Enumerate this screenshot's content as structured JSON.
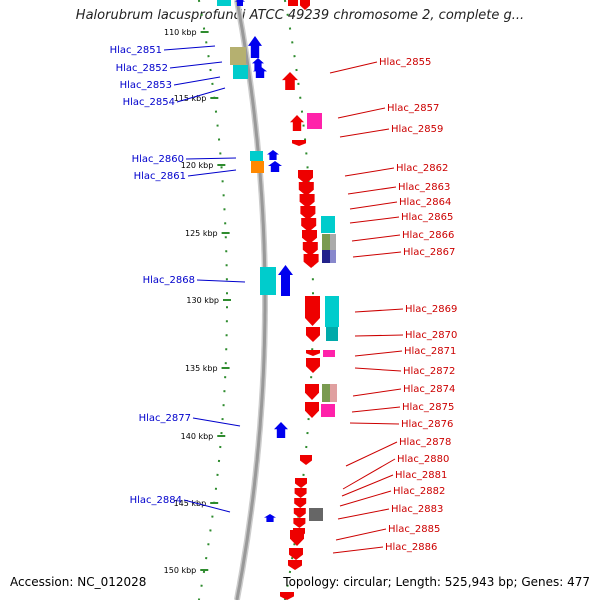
{
  "header": {
    "title": "Halorubrum lacusprofundi ATCC 49239 chromosome 2, complete g..."
  },
  "footer": {
    "accession": "Accession: NC_012028",
    "topology": "Topology: circular; Length: 525,943 bp; Genes: 477"
  },
  "colors": {
    "backbone": "#999999",
    "left_label": "#0000cc",
    "right_label": "#cc0000",
    "tick": "#2e8b2e"
  },
  "scale": {
    "ticks": [
      "110 kbp",
      "115 kbp",
      "120 kbp",
      "125 kbp",
      "130 kbp",
      "135 kbp",
      "140 kbp",
      "145 kbp",
      "150 kbp"
    ]
  },
  "genes_left": [
    "Hlac_2851",
    "Hlac_2852",
    "Hlac_2853",
    "Hlac_2854",
    "Hlac_2860",
    "Hlac_2861",
    "Hlac_2868",
    "Hlac_2877",
    "Hlac_2884"
  ],
  "genes_right": [
    "Hlac_2855",
    "Hlac_2857",
    "Hlac_2859",
    "Hlac_2862",
    "Hlac_2863",
    "Hlac_2864",
    "Hlac_2865",
    "Hlac_2866",
    "Hlac_2867",
    "Hlac_2869",
    "Hlac_2870",
    "Hlac_2871",
    "Hlac_2872",
    "Hlac_2874",
    "Hlac_2875",
    "Hlac_2876",
    "Hlac_2878",
    "Hlac_2880",
    "Hlac_2881",
    "Hlac_2882",
    "Hlac_2883",
    "Hlac_2885",
    "Hlac_2886"
  ]
}
